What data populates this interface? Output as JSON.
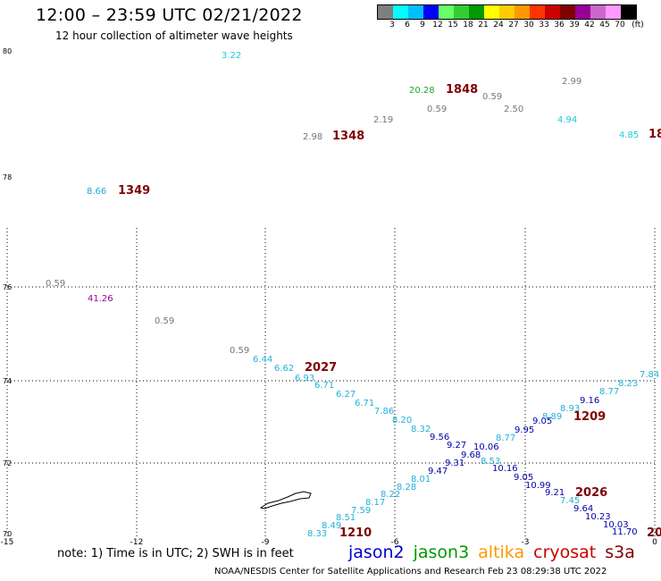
{
  "title": "12:00 – 23:59 UTC 02/21/2022",
  "subtitle": "12 hour collection of altimeter wave heights",
  "color_scale": {
    "labels": [
      "3",
      "6",
      "9",
      "12",
      "15",
      "18",
      "21",
      "24",
      "27",
      "30",
      "33",
      "36",
      "39",
      "42",
      "45",
      "70",
      "(ft)"
    ],
    "colors": [
      "#7f7f7f",
      "#00ffff",
      "#00bfff",
      "#0000ff",
      "#66ff66",
      "#33cc33",
      "#009900",
      "#ffff00",
      "#ffcc00",
      "#ff9900",
      "#ff3300",
      "#cc0000",
      "#800000",
      "#990099",
      "#cc66cc",
      "#ff99ff",
      "#000000"
    ]
  },
  "axes": {
    "lon_ticks": [
      "-15",
      "-12",
      "-9",
      "-6",
      "-3",
      "0"
    ],
    "lat_ticks": [
      "80",
      "78",
      "76",
      "74",
      "72",
      "70"
    ]
  },
  "wave_labels": [
    {
      "text": "3.22",
      "color": "#22c8d8"
    },
    {
      "text": "20.28",
      "color": "#22aa22"
    },
    {
      "text": "1848",
      "color": "#800000",
      "bold": true
    },
    {
      "text": "0.59",
      "color": "#777777"
    },
    {
      "text": "2.99",
      "color": "#777777"
    },
    {
      "text": "0.59",
      "color": "#777777"
    },
    {
      "text": "2.50",
      "color": "#777777"
    },
    {
      "text": "2.19",
      "color": "#777777"
    },
    {
      "text": "2.98",
      "color": "#777777"
    },
    {
      "text": "1348",
      "color": "#800000",
      "bold": true
    },
    {
      "text": "4.94",
      "color": "#22c8d8"
    },
    {
      "text": "4.85",
      "color": "#22c8d8"
    },
    {
      "text": "18",
      "color": "#800000",
      "bold": true
    },
    {
      "text": "8.66",
      "color": "#22a8d8"
    },
    {
      "text": "1349",
      "color": "#800000",
      "bold": true
    },
    {
      "text": "0.59",
      "color": "#777777"
    },
    {
      "text": "41.26",
      "color": "#990099"
    },
    {
      "text": "0.59",
      "color": "#777777"
    },
    {
      "text": "0.59",
      "color": "#777777"
    },
    {
      "text": "6.44",
      "color": "#22b0d8"
    },
    {
      "text": "6.62",
      "color": "#22b0d8"
    },
    {
      "text": "2027",
      "color": "#800000",
      "bold": true
    },
    {
      "text": "6.93",
      "color": "#22b0d8"
    },
    {
      "text": "6.71",
      "color": "#22b0d8"
    },
    {
      "text": "6.27",
      "color": "#22b0d8"
    },
    {
      "text": "6.71",
      "color": "#22b0d8"
    },
    {
      "text": "7.86",
      "color": "#22b0d8"
    },
    {
      "text": "8.20",
      "color": "#22b0d8"
    },
    {
      "text": "8.32",
      "color": "#22b0d8"
    },
    {
      "text": "9.56",
      "color": "#0000aa"
    },
    {
      "text": "9.27",
      "color": "#0000aa"
    },
    {
      "text": "10.06",
      "color": "#0000aa"
    },
    {
      "text": "9.68",
      "color": "#0000aa"
    },
    {
      "text": "9.31",
      "color": "#0000aa"
    },
    {
      "text": "8.53",
      "color": "#22b0d8"
    },
    {
      "text": "8.77",
      "color": "#22b0d8"
    },
    {
      "text": "9.95",
      "color": "#0000aa"
    },
    {
      "text": "9.05",
      "color": "#0000aa"
    },
    {
      "text": "8.89",
      "color": "#22b0d8"
    },
    {
      "text": "8.93",
      "color": "#22b0d8"
    },
    {
      "text": "1209",
      "color": "#800000",
      "bold": true
    },
    {
      "text": "9.16",
      "color": "#0000aa"
    },
    {
      "text": "8.77",
      "color": "#22b0d8"
    },
    {
      "text": "8.23",
      "color": "#22b0d8"
    },
    {
      "text": "7.84",
      "color": "#22b0d8"
    },
    {
      "text": "9.47",
      "color": "#0000aa"
    },
    {
      "text": "8.01",
      "color": "#22b0d8"
    },
    {
      "text": "8.28",
      "color": "#22b0d8"
    },
    {
      "text": "8.22",
      "color": "#22b0d8"
    },
    {
      "text": "8.17",
      "color": "#22b0d8"
    },
    {
      "text": "7.59",
      "color": "#22b0d8"
    },
    {
      "text": "8.51",
      "color": "#22b0d8"
    },
    {
      "text": "8.49",
      "color": "#22b0d8"
    },
    {
      "text": "8.33",
      "color": "#22b0d8"
    },
    {
      "text": "1210",
      "color": "#800000",
      "bold": true
    },
    {
      "text": "10.16",
      "color": "#0000aa"
    },
    {
      "text": "9.05",
      "color": "#0000aa"
    },
    {
      "text": "10.99",
      "color": "#0000aa"
    },
    {
      "text": "9.21",
      "color": "#0000aa"
    },
    {
      "text": "2026",
      "color": "#800000",
      "bold": true
    },
    {
      "text": "7.45",
      "color": "#22b0d8"
    },
    {
      "text": "9.64",
      "color": "#0000aa"
    },
    {
      "text": "10.23",
      "color": "#0000aa"
    },
    {
      "text": "10.03",
      "color": "#0000aa"
    },
    {
      "text": "11.70",
      "color": "#0000aa"
    },
    {
      "text": "20",
      "color": "#800000",
      "bold": true
    }
  ],
  "note": "note:  1) Time is in UTC;  2) SWH is in feet",
  "legend": [
    {
      "text": "jason2",
      "color": "#0000cc"
    },
    {
      "text": "jason3",
      "color": "#009900"
    },
    {
      "text": "altika",
      "color": "#ff9900"
    },
    {
      "text": "cryosat",
      "color": "#cc0000"
    },
    {
      "text": "s3a",
      "color": "#800000"
    }
  ],
  "footer": "NOAA/NESDIS Center for Satellite Applications and Research     Feb 23 08:29:38 UTC 2022"
}
